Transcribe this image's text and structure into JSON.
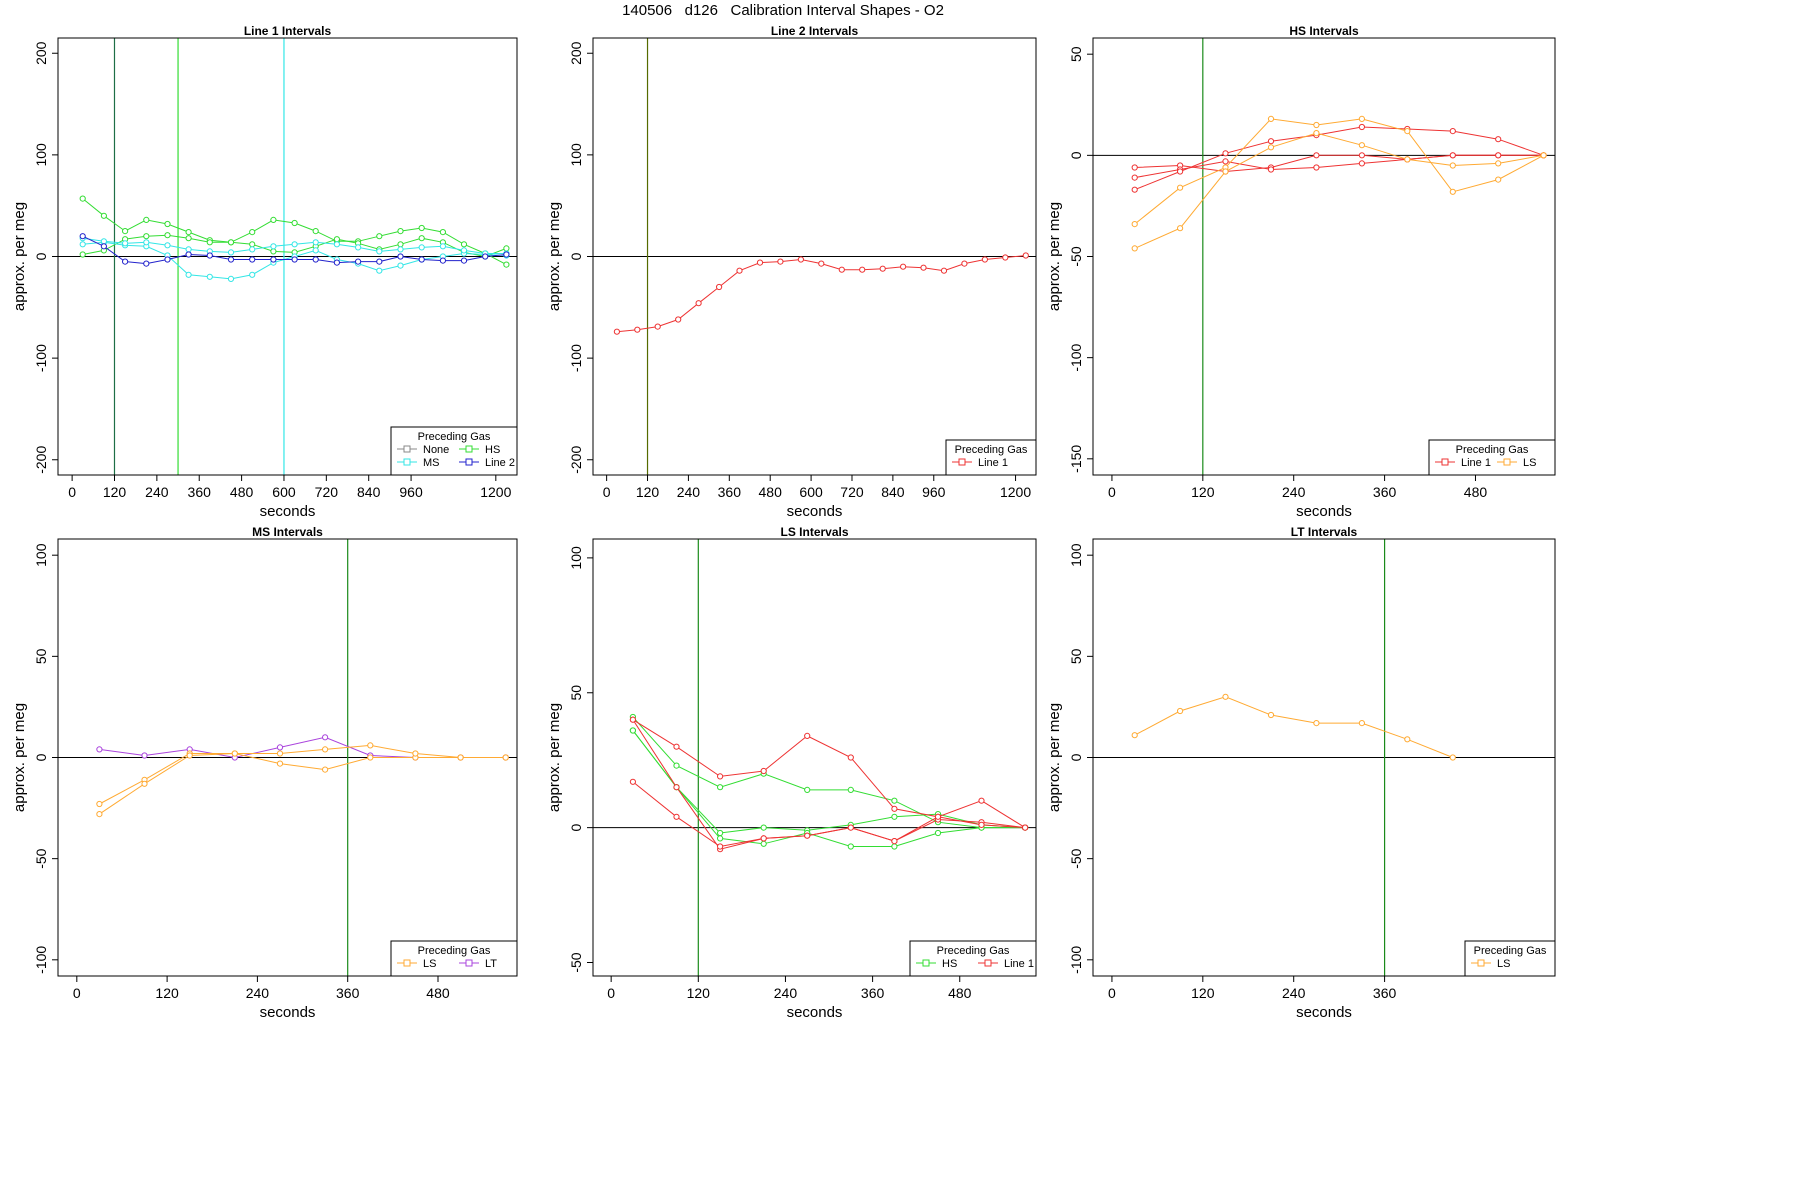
{
  "figure": {
    "title": "140506   d126   Calibration Interval Shapes - O2"
  },
  "colors": {
    "None": "#888888",
    "MS": "#33e6e6",
    "HS": "#33dd33",
    "Line 2": "#2222cc",
    "Line 1": "#ee3333",
    "LS": "#ffaa33",
    "LT": "#aa44dd",
    "vline_dark": "#1e6e46",
    "vline_olive": "#556b00",
    "vline_green": "#1a8a1a",
    "vline_cyan": "#33e6e6",
    "vline_lime": "#33dd33"
  },
  "chart_data": [
    {
      "type": "line",
      "title": "Line 1 Intervals",
      "xlabel": "seconds",
      "ylabel": "approx. per meg",
      "xlim": [
        -40,
        1260
      ],
      "ylim": [
        -215,
        215
      ],
      "xticks": [
        0,
        120,
        240,
        360,
        480,
        600,
        720,
        840,
        960,
        1200
      ],
      "yticks": [
        -200,
        -100,
        0,
        100,
        200
      ],
      "vlines": [
        {
          "x": 120,
          "color": "vline_dark"
        },
        {
          "x": 300,
          "color": "vline_lime"
        },
        {
          "x": 600,
          "color": "vline_cyan"
        }
      ],
      "legend": {
        "title": "Preceding Gas",
        "position": "bottom-right",
        "columns": 2,
        "entries": [
          "None",
          "HS",
          "MS",
          "Line 2"
        ]
      },
      "series": [
        {
          "name": "HS",
          "x": [
            30,
            90,
            150,
            210,
            270,
            330,
            390,
            450,
            510,
            570,
            630,
            690,
            750,
            810,
            870,
            930,
            990,
            1050,
            1110,
            1170,
            1230
          ],
          "y": [
            57,
            40,
            25,
            36,
            32,
            24,
            16,
            14,
            24,
            36,
            33,
            25,
            15,
            15,
            20,
            25,
            28,
            24,
            12,
            3,
            -8
          ]
        },
        {
          "name": "HS",
          "x": [
            30,
            90,
            150,
            210,
            270,
            330,
            390,
            450,
            510,
            570,
            630,
            690,
            750,
            810,
            870,
            930,
            990,
            1050,
            1110,
            1170,
            1230
          ],
          "y": [
            2,
            6,
            17,
            20,
            21,
            18,
            14,
            14,
            12,
            5,
            4,
            10,
            17,
            13,
            7,
            12,
            18,
            14,
            4,
            0,
            8
          ]
        },
        {
          "name": "MS",
          "x": [
            30,
            90,
            150,
            210,
            270,
            330,
            390,
            450,
            510,
            570,
            630,
            690,
            750,
            810,
            870,
            930,
            990,
            1050,
            1110,
            1170,
            1230
          ],
          "y": [
            12,
            14,
            11,
            10,
            1,
            -18,
            -20,
            -22,
            -18,
            -6,
            0,
            6,
            -3,
            -7,
            -14,
            -9,
            -3,
            0,
            3,
            2,
            1
          ]
        },
        {
          "name": "MS",
          "x": [
            30,
            90,
            150,
            210,
            270,
            330,
            390,
            450,
            510,
            570,
            630,
            690,
            750,
            810,
            870,
            930,
            990,
            1050,
            1110,
            1170,
            1230
          ],
          "y": [
            18,
            15,
            13,
            14,
            11,
            7,
            5,
            4,
            7,
            10,
            12,
            14,
            12,
            9,
            5,
            7,
            9,
            10,
            6,
            3,
            3
          ]
        },
        {
          "name": "Line 2",
          "x": [
            30,
            90,
            150,
            210,
            270,
            330,
            390,
            450,
            510,
            570,
            630,
            690,
            750,
            810,
            870,
            930,
            990,
            1050,
            1110,
            1170,
            1230
          ],
          "y": [
            20,
            10,
            -5,
            -7,
            -3,
            2,
            1,
            -3,
            -3,
            -3,
            -3,
            -3,
            -6,
            -5,
            -5,
            0,
            -3,
            -4,
            -4,
            0,
            2
          ]
        }
      ]
    },
    {
      "type": "line",
      "title": "Line 2 Intervals",
      "xlabel": "seconds",
      "ylabel": "approx. per meg",
      "xlim": [
        -40,
        1260
      ],
      "ylim": [
        -215,
        215
      ],
      "xticks": [
        0,
        120,
        240,
        360,
        480,
        600,
        720,
        840,
        960,
        1200
      ],
      "yticks": [
        -200,
        -100,
        0,
        100,
        200
      ],
      "vlines": [
        {
          "x": 120,
          "color": "vline_olive"
        }
      ],
      "legend": {
        "title": "Preceding Gas",
        "position": "bottom-right",
        "columns": 1,
        "entries": [
          "Line 1"
        ]
      },
      "series": [
        {
          "name": "Line 1",
          "x": [
            30,
            90,
            150,
            210,
            270,
            330,
            390,
            450,
            510,
            570,
            630,
            690,
            750,
            810,
            870,
            930,
            990,
            1050,
            1110,
            1170,
            1230
          ],
          "y": [
            -74,
            -72,
            -69,
            -62,
            -46,
            -30,
            -14,
            -6,
            -5,
            -3,
            -7,
            -13,
            -13,
            -12,
            -10,
            -11,
            -14,
            -7,
            -3,
            -1,
            1
          ]
        }
      ]
    },
    {
      "type": "line",
      "title": "HS Intervals",
      "xlabel": "seconds",
      "ylabel": "approx. per meg",
      "xlim": [
        -25,
        585
      ],
      "ylim": [
        -158,
        58
      ],
      "xticks": [
        0,
        120,
        240,
        360,
        480
      ],
      "yticks": [
        -150,
        -100,
        -50,
        0,
        50
      ],
      "vlines": [
        {
          "x": 120,
          "color": "vline_green"
        }
      ],
      "legend": {
        "title": "Preceding Gas",
        "position": "bottom-right",
        "columns": 2,
        "entries": [
          "Line 1",
          "LS"
        ]
      },
      "series": [
        {
          "name": "Line 1",
          "x": [
            30,
            90,
            150,
            210,
            270,
            330,
            390,
            450,
            510,
            570
          ],
          "y": [
            -6,
            -5,
            -8,
            -6,
            0,
            0,
            -2,
            0,
            0,
            0
          ]
        },
        {
          "name": "Line 1",
          "x": [
            30,
            90,
            150,
            210,
            270,
            330,
            390,
            450,
            510,
            570
          ],
          "y": [
            -11,
            -7,
            -3,
            -7,
            -6,
            -4,
            -2,
            0,
            0,
            0
          ]
        },
        {
          "name": "Line 1",
          "x": [
            30,
            90,
            150,
            210,
            270,
            330,
            390,
            450,
            510,
            570
          ],
          "y": [
            -17,
            -8,
            1,
            7,
            10,
            14,
            13,
            12,
            8,
            0
          ]
        },
        {
          "name": "LS",
          "x": [
            30,
            90,
            150,
            210,
            270,
            330,
            390,
            450,
            510,
            570
          ],
          "y": [
            -34,
            -16,
            -6,
            18,
            15,
            18,
            12,
            -18,
            -12,
            0
          ]
        },
        {
          "name": "LS",
          "x": [
            30,
            90,
            150,
            210,
            270,
            330,
            390,
            450,
            510,
            570
          ],
          "y": [
            -46,
            -36,
            -8,
            4,
            11,
            5,
            -2,
            -5,
            -4,
            0
          ]
        }
      ]
    },
    {
      "type": "line",
      "title": "MS Intervals",
      "xlabel": "seconds",
      "ylabel": "approx. per meg",
      "xlim": [
        -25,
        585
      ],
      "ylim": [
        -108,
        108
      ],
      "xticks": [
        0,
        120,
        240,
        360,
        480
      ],
      "yticks": [
        -100,
        -50,
        0,
        50,
        100
      ],
      "vlines": [
        {
          "x": 360,
          "color": "vline_green"
        }
      ],
      "legend": {
        "title": "Preceding Gas",
        "position": "bottom-right",
        "columns": 2,
        "entries": [
          "LS",
          "LT"
        ]
      },
      "series": [
        {
          "name": "LT",
          "x": [
            30,
            90,
            150,
            210,
            270,
            330,
            390,
            450,
            510,
            570
          ],
          "y": [
            4,
            1,
            4,
            0,
            5,
            10,
            1,
            0,
            0,
            0
          ]
        },
        {
          "name": "LS",
          "x": [
            30,
            90,
            150,
            210,
            270,
            330,
            390,
            450,
            510,
            570
          ],
          "y": [
            -23,
            -11,
            2,
            2,
            -3,
            -6,
            0,
            0,
            0,
            0
          ]
        },
        {
          "name": "LS",
          "x": [
            30,
            90,
            150,
            210,
            270,
            330,
            390,
            450,
            510,
            570
          ],
          "y": [
            -28,
            -13,
            1,
            2,
            2,
            4,
            6,
            2,
            0,
            0
          ]
        }
      ]
    },
    {
      "type": "line",
      "title": "LS Intervals",
      "xlabel": "seconds",
      "ylabel": "approx. per meg",
      "xlim": [
        -25,
        585
      ],
      "ylim": [
        -55,
        107
      ],
      "xticks": [
        0,
        120,
        240,
        360,
        480
      ],
      "yticks": [
        -50,
        0,
        50,
        100
      ],
      "vlines": [
        {
          "x": 120,
          "color": "vline_green"
        }
      ],
      "legend": {
        "title": "Preceding Gas",
        "position": "bottom-right",
        "columns": 2,
        "entries": [
          "HS",
          "Line 1"
        ]
      },
      "series": [
        {
          "name": "HS",
          "x": [
            30,
            90,
            150,
            210,
            270,
            330,
            390,
            450,
            510,
            570
          ],
          "y": [
            41,
            23,
            15,
            20,
            14,
            14,
            10,
            2,
            0,
            0
          ]
        },
        {
          "name": "HS",
          "x": [
            30,
            90,
            150,
            210,
            270,
            330,
            390,
            450,
            510,
            570
          ],
          "y": [
            36,
            15,
            -2,
            0,
            -1,
            1,
            4,
            5,
            1,
            0
          ]
        },
        {
          "name": "HS",
          "x": [
            30,
            90,
            150,
            210,
            270,
            330,
            390,
            450,
            510,
            570
          ],
          "y": [
            36,
            15,
            -4,
            -6,
            -2,
            -7,
            -7,
            -2,
            0,
            0
          ]
        },
        {
          "name": "Line 1",
          "x": [
            30,
            90,
            150,
            210,
            270,
            330,
            390,
            450,
            510,
            570
          ],
          "y": [
            40,
            30,
            19,
            21,
            34,
            26,
            7,
            4,
            10,
            0
          ]
        },
        {
          "name": "Line 1",
          "x": [
            30,
            90,
            150,
            210,
            270,
            330,
            390,
            450,
            510,
            570
          ],
          "y": [
            40,
            15,
            -8,
            -4,
            -3,
            0,
            -5,
            3,
            2,
            0
          ]
        },
        {
          "name": "Line 1",
          "x": [
            30,
            90,
            150,
            210,
            270,
            330,
            390,
            450,
            510,
            570
          ],
          "y": [
            17,
            4,
            -7,
            -4,
            -3,
            0,
            -5,
            4,
            1,
            0
          ]
        }
      ]
    },
    {
      "type": "line",
      "title": "LT Intervals",
      "xlabel": "seconds",
      "ylabel": "approx. per meg",
      "xlim": [
        -25,
        585
      ],
      "ylim": [
        -108,
        108
      ],
      "xticks": [
        0,
        120,
        240,
        360
      ],
      "yticks": [
        -100,
        -50,
        0,
        50,
        100
      ],
      "vlines": [
        {
          "x": 360,
          "color": "vline_green"
        }
      ],
      "legend": {
        "title": "Preceding Gas",
        "position": "bottom-right",
        "columns": 1,
        "entries": [
          "LS"
        ]
      },
      "series": [
        {
          "name": "LS",
          "x": [
            30,
            90,
            150,
            210,
            270,
            330,
            390,
            450
          ],
          "y": [
            11,
            23,
            30,
            21,
            17,
            17,
            9,
            0
          ]
        }
      ]
    }
  ]
}
